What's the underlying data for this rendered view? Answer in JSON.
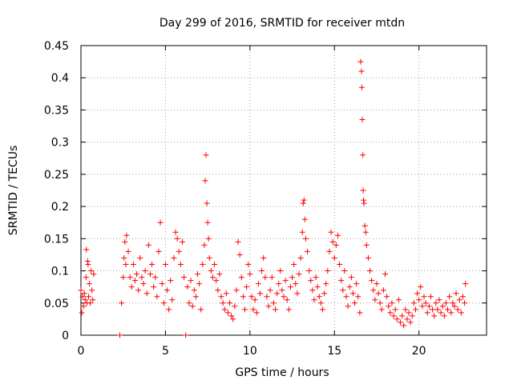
{
  "chart_data": {
    "type": "scatter",
    "title": "Day 299 of 2016, SRMTID for receiver mtdn",
    "xlabel": "GPS time / hours",
    "ylabel": "SRMTID / TECUs",
    "xlim": [
      0,
      24
    ],
    "ylim": [
      0,
      0.45
    ],
    "xticks": [
      0,
      5,
      10,
      15,
      20
    ],
    "xtick_labels": [
      "0",
      "5",
      "10",
      "15",
      "20"
    ],
    "yticks": [
      0,
      0.05,
      0.1,
      0.15,
      0.2,
      0.25,
      0.3,
      0.35,
      0.4,
      0.45
    ],
    "ytick_labels": [
      "0",
      "0.05",
      "0.1",
      "0.15",
      "0.2",
      "0.25",
      "0.3",
      "0.35",
      "0.4",
      "0.45"
    ],
    "grid": true,
    "marker": "+",
    "color": "#ff0000",
    "series": [
      {
        "name": "SRMTID",
        "points": [
          [
            0.0,
            0.07
          ],
          [
            0.05,
            0.035
          ],
          [
            0.1,
            0.06
          ],
          [
            0.15,
            0.045
          ],
          [
            0.2,
            0.065
          ],
          [
            0.25,
            0.055
          ],
          [
            0.3,
            0.09
          ],
          [
            0.35,
            0.05
          ],
          [
            0.4,
            0.115
          ],
          [
            0.45,
            0.06
          ],
          [
            0.5,
            0.08
          ],
          [
            0.55,
            0.05
          ],
          [
            0.6,
            0.1
          ],
          [
            0.65,
            0.07
          ],
          [
            0.7,
            0.055
          ],
          [
            0.75,
            0.095
          ],
          [
            0.32,
            0.133
          ],
          [
            0.42,
            0.11
          ],
          [
            2.3,
            0.0
          ],
          [
            2.4,
            0.05
          ],
          [
            2.5,
            0.09
          ],
          [
            2.55,
            0.12
          ],
          [
            2.6,
            0.145
          ],
          [
            2.65,
            0.11
          ],
          [
            2.7,
            0.155
          ],
          [
            2.8,
            0.13
          ],
          [
            2.9,
            0.09
          ],
          [
            3.0,
            0.075
          ],
          [
            3.1,
            0.11
          ],
          [
            3.2,
            0.085
          ],
          [
            3.3,
            0.095
          ],
          [
            3.4,
            0.07
          ],
          [
            3.5,
            0.12
          ],
          [
            3.6,
            0.09
          ],
          [
            3.7,
            0.08
          ],
          [
            3.8,
            0.1
          ],
          [
            3.9,
            0.065
          ],
          [
            4.0,
            0.14
          ],
          [
            4.1,
            0.095
          ],
          [
            4.2,
            0.11
          ],
          [
            4.3,
            0.075
          ],
          [
            4.4,
            0.09
          ],
          [
            4.5,
            0.06
          ],
          [
            4.6,
            0.13
          ],
          [
            4.7,
            0.175
          ],
          [
            4.8,
            0.08
          ],
          [
            4.9,
            0.05
          ],
          [
            5.0,
            0.11
          ],
          [
            5.1,
            0.07
          ],
          [
            5.2,
            0.04
          ],
          [
            5.3,
            0.085
          ],
          [
            5.4,
            0.055
          ],
          [
            5.5,
            0.12
          ],
          [
            5.6,
            0.16
          ],
          [
            5.7,
            0.15
          ],
          [
            5.8,
            0.13
          ],
          [
            5.9,
            0.11
          ],
          [
            6.0,
            0.145
          ],
          [
            6.1,
            0.09
          ],
          [
            6.2,
            0.0
          ],
          [
            6.3,
            0.075
          ],
          [
            6.4,
            0.05
          ],
          [
            6.5,
            0.085
          ],
          [
            6.6,
            0.045
          ],
          [
            6.7,
            0.07
          ],
          [
            6.8,
            0.06
          ],
          [
            6.9,
            0.095
          ],
          [
            7.0,
            0.08
          ],
          [
            7.1,
            0.04
          ],
          [
            7.2,
            0.11
          ],
          [
            7.3,
            0.14
          ],
          [
            7.35,
            0.24
          ],
          [
            7.4,
            0.28
          ],
          [
            7.45,
            0.205
          ],
          [
            7.5,
            0.175
          ],
          [
            7.55,
            0.15
          ],
          [
            7.6,
            0.12
          ],
          [
            7.7,
            0.1
          ],
          [
            7.8,
            0.09
          ],
          [
            7.9,
            0.11
          ],
          [
            8.0,
            0.085
          ],
          [
            8.1,
            0.07
          ],
          [
            8.2,
            0.095
          ],
          [
            8.3,
            0.06
          ],
          [
            8.4,
            0.05
          ],
          [
            8.5,
            0.04
          ],
          [
            8.6,
            0.065
          ],
          [
            8.7,
            0.035
          ],
          [
            8.8,
            0.05
          ],
          [
            8.9,
            0.03
          ],
          [
            9.0,
            0.025
          ],
          [
            9.1,
            0.045
          ],
          [
            9.2,
            0.07
          ],
          [
            9.3,
            0.145
          ],
          [
            9.4,
            0.125
          ],
          [
            9.5,
            0.09
          ],
          [
            9.6,
            0.06
          ],
          [
            9.7,
            0.04
          ],
          [
            9.8,
            0.075
          ],
          [
            9.9,
            0.11
          ],
          [
            10.0,
            0.095
          ],
          [
            10.1,
            0.06
          ],
          [
            10.2,
            0.04
          ],
          [
            10.3,
            0.055
          ],
          [
            10.4,
            0.035
          ],
          [
            10.5,
            0.08
          ],
          [
            10.6,
            0.065
          ],
          [
            10.7,
            0.1
          ],
          [
            10.8,
            0.12
          ],
          [
            10.9,
            0.09
          ],
          [
            11.0,
            0.06
          ],
          [
            11.1,
            0.045
          ],
          [
            11.2,
            0.07
          ],
          [
            11.3,
            0.09
          ],
          [
            11.4,
            0.05
          ],
          [
            11.5,
            0.04
          ],
          [
            11.6,
            0.065
          ],
          [
            11.7,
            0.08
          ],
          [
            11.8,
            0.1
          ],
          [
            11.9,
            0.07
          ],
          [
            12.0,
            0.06
          ],
          [
            12.1,
            0.085
          ],
          [
            12.2,
            0.055
          ],
          [
            12.3,
            0.04
          ],
          [
            12.4,
            0.075
          ],
          [
            12.5,
            0.09
          ],
          [
            12.6,
            0.11
          ],
          [
            12.7,
            0.08
          ],
          [
            12.8,
            0.065
          ],
          [
            12.9,
            0.095
          ],
          [
            13.0,
            0.12
          ],
          [
            13.1,
            0.16
          ],
          [
            13.15,
            0.205
          ],
          [
            13.2,
            0.21
          ],
          [
            13.25,
            0.18
          ],
          [
            13.3,
            0.15
          ],
          [
            13.4,
            0.13
          ],
          [
            13.5,
            0.1
          ],
          [
            13.6,
            0.085
          ],
          [
            13.7,
            0.07
          ],
          [
            13.8,
            0.055
          ],
          [
            13.9,
            0.09
          ],
          [
            14.0,
            0.075
          ],
          [
            14.1,
            0.06
          ],
          [
            14.2,
            0.05
          ],
          [
            14.3,
            0.04
          ],
          [
            14.4,
            0.065
          ],
          [
            14.5,
            0.08
          ],
          [
            14.6,
            0.1
          ],
          [
            14.7,
            0.13
          ],
          [
            14.8,
            0.16
          ],
          [
            14.9,
            0.145
          ],
          [
            15.0,
            0.12
          ],
          [
            15.1,
            0.14
          ],
          [
            15.2,
            0.155
          ],
          [
            15.3,
            0.11
          ],
          [
            15.4,
            0.085
          ],
          [
            15.5,
            0.07
          ],
          [
            15.6,
            0.1
          ],
          [
            15.7,
            0.06
          ],
          [
            15.8,
            0.045
          ],
          [
            15.9,
            0.075
          ],
          [
            16.0,
            0.09
          ],
          [
            16.1,
            0.065
          ],
          [
            16.2,
            0.05
          ],
          [
            16.3,
            0.08
          ],
          [
            16.4,
            0.06
          ],
          [
            16.5,
            0.035
          ],
          [
            16.55,
            0.425
          ],
          [
            16.6,
            0.41
          ],
          [
            16.62,
            0.385
          ],
          [
            16.65,
            0.335
          ],
          [
            16.68,
            0.28
          ],
          [
            16.7,
            0.225
          ],
          [
            16.72,
            0.21
          ],
          [
            16.75,
            0.205
          ],
          [
            16.8,
            0.17
          ],
          [
            16.85,
            0.16
          ],
          [
            16.9,
            0.14
          ],
          [
            17.0,
            0.12
          ],
          [
            17.1,
            0.1
          ],
          [
            17.2,
            0.085
          ],
          [
            17.3,
            0.07
          ],
          [
            17.4,
            0.055
          ],
          [
            17.5,
            0.08
          ],
          [
            17.6,
            0.065
          ],
          [
            17.7,
            0.05
          ],
          [
            17.8,
            0.04
          ],
          [
            17.9,
            0.07
          ],
          [
            18.0,
            0.095
          ],
          [
            18.1,
            0.06
          ],
          [
            18.2,
            0.045
          ],
          [
            18.3,
            0.035
          ],
          [
            18.4,
            0.05
          ],
          [
            18.5,
            0.03
          ],
          [
            18.6,
            0.04
          ],
          [
            18.7,
            0.025
          ],
          [
            18.8,
            0.055
          ],
          [
            18.9,
            0.02
          ],
          [
            19.0,
            0.03
          ],
          [
            19.1,
            0.015
          ],
          [
            19.2,
            0.04
          ],
          [
            19.3,
            0.025
          ],
          [
            19.4,
            0.035
          ],
          [
            19.5,
            0.02
          ],
          [
            19.6,
            0.03
          ],
          [
            19.7,
            0.05
          ],
          [
            19.8,
            0.04
          ],
          [
            19.9,
            0.065
          ],
          [
            20.0,
            0.055
          ],
          [
            20.1,
            0.075
          ],
          [
            20.2,
            0.045
          ],
          [
            20.3,
            0.06
          ],
          [
            20.4,
            0.05
          ],
          [
            20.5,
            0.035
          ],
          [
            20.6,
            0.045
          ],
          [
            20.7,
            0.06
          ],
          [
            20.8,
            0.04
          ],
          [
            20.9,
            0.03
          ],
          [
            21.0,
            0.05
          ],
          [
            21.1,
            0.04
          ],
          [
            21.2,
            0.055
          ],
          [
            21.3,
            0.035
          ],
          [
            21.4,
            0.045
          ],
          [
            21.5,
            0.03
          ],
          [
            21.6,
            0.05
          ],
          [
            21.7,
            0.04
          ],
          [
            21.8,
            0.06
          ],
          [
            21.9,
            0.035
          ],
          [
            22.0,
            0.05
          ],
          [
            22.1,
            0.045
          ],
          [
            22.2,
            0.065
          ],
          [
            22.3,
            0.04
          ],
          [
            22.4,
            0.055
          ],
          [
            22.5,
            0.035
          ],
          [
            22.6,
            0.06
          ],
          [
            22.7,
            0.05
          ],
          [
            22.75,
            0.08
          ]
        ]
      }
    ]
  }
}
